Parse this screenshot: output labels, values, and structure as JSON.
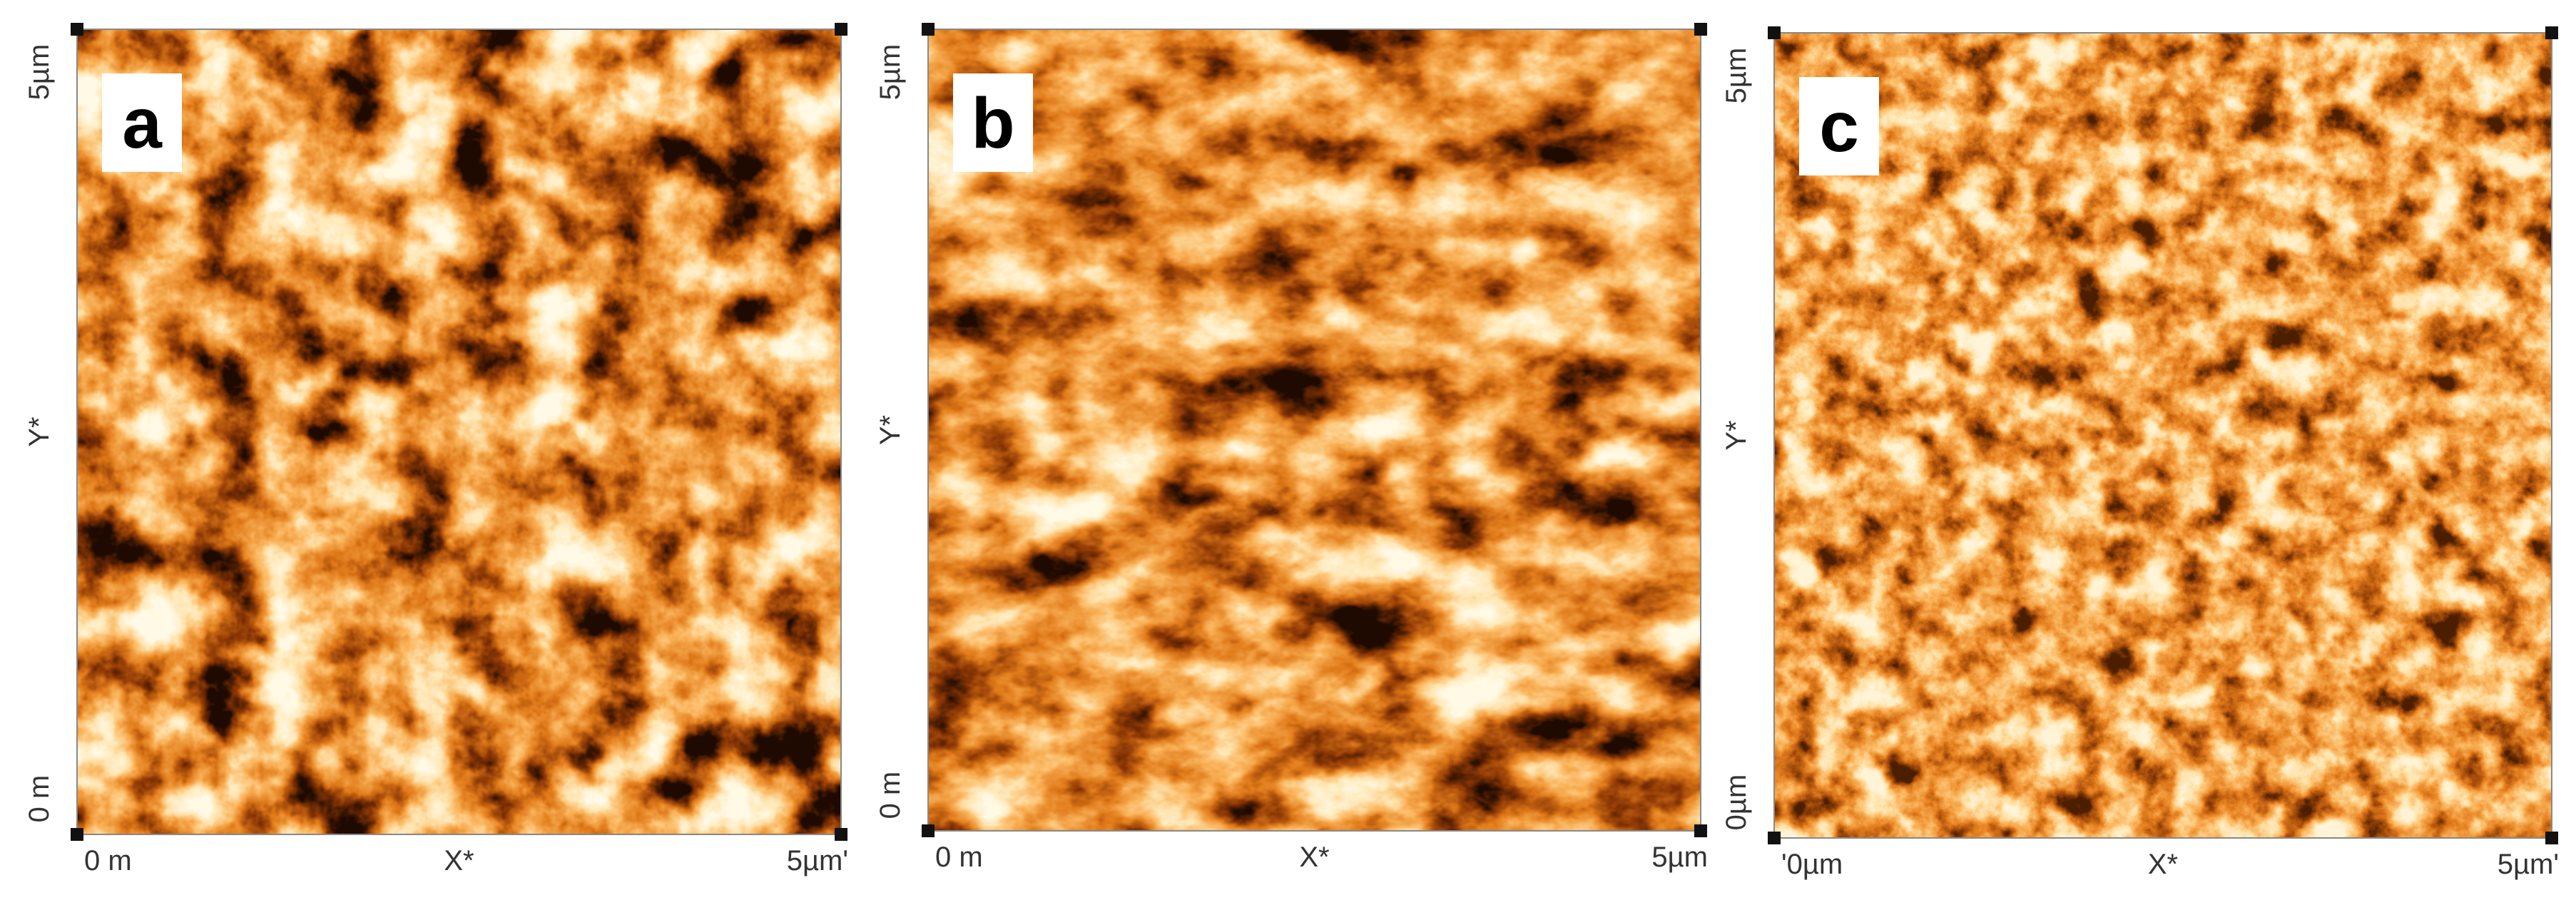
{
  "panels": [
    {
      "label": "a",
      "y_labels": [
        "5µm",
        "Y*",
        "0 m"
      ],
      "x_labels": [
        "0 m",
        "X*",
        "5µm'"
      ]
    },
    {
      "label": "b",
      "y_labels": [
        "5µm",
        "Y*",
        "0 m"
      ],
      "x_labels": [
        "0 m",
        "X*",
        "5µm"
      ]
    },
    {
      "label": "c",
      "y_labels": [
        "5µm",
        "Y*",
        "0µm"
      ],
      "x_labels": [
        "'0µm",
        "X*",
        "5µm'"
      ]
    }
  ]
}
